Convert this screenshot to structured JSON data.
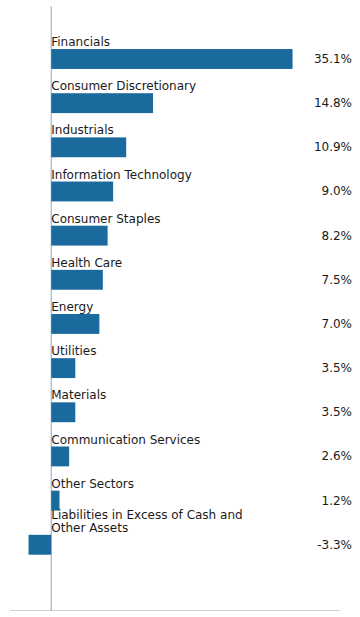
{
  "chart_data": {
    "type": "bar",
    "orientation": "horizontal",
    "categories": [
      "Financials",
      "Consumer Discretionary",
      "Industrials",
      "Information Technology",
      "Consumer Staples",
      "Health Care",
      "Energy",
      "Utilities",
      "Materials",
      "Communication Services",
      "Other Sectors",
      "Liabilities in Excess of Cash and\nOther Assets"
    ],
    "values": [
      35.1,
      14.8,
      10.9,
      9.0,
      8.2,
      7.5,
      7.0,
      3.5,
      3.5,
      2.6,
      1.2,
      -3.3
    ],
    "value_labels": [
      "35.1%",
      "14.8%",
      "10.9%",
      "9.0%",
      "8.2%",
      "7.5%",
      "7.0%",
      "3.5%",
      "3.5%",
      "2.6%",
      "1.2%",
      "-3.3%"
    ],
    "color": "#1a6a9e",
    "xlim": [
      -6,
      42
    ],
    "data_labels": true,
    "tick_labels": false
  }
}
